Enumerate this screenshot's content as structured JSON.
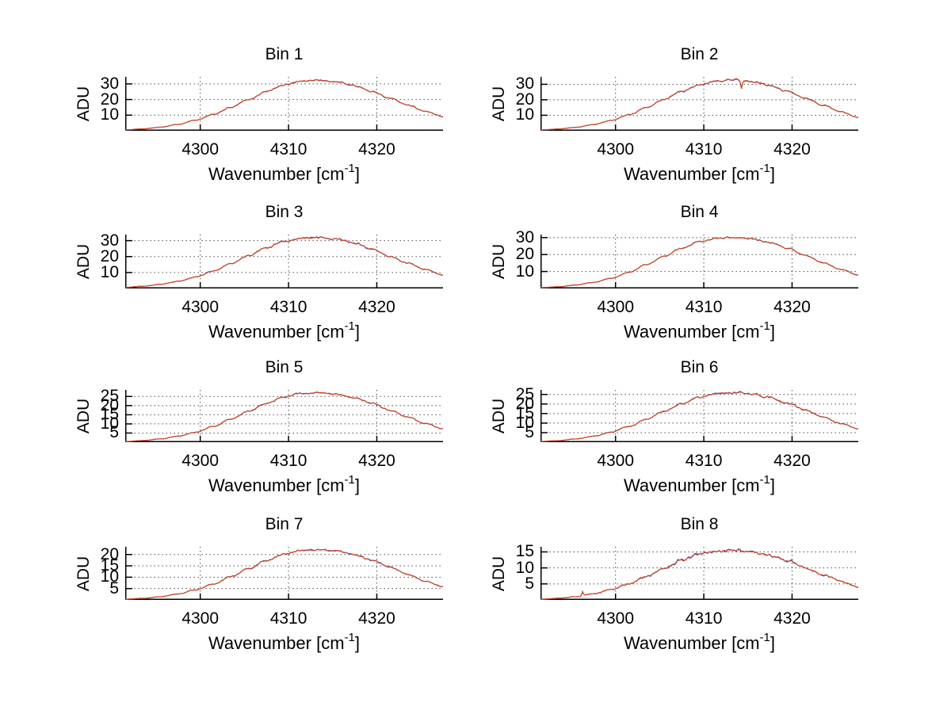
{
  "figure": {
    "bg": "#ffffff",
    "ylabel": "ADU",
    "xlabel_main": "Wavenumber [cm",
    "xlabel_sup": "-1",
    "xlabel_close": "]",
    "xlim": [
      4291.5,
      4327.5
    ],
    "xticks": [
      4300,
      4310,
      4320
    ],
    "grid": true,
    "colors": {
      "trace_main": "#cc4a24",
      "trace_under": "#3a35c4",
      "grid": "#404040",
      "axis": "#000000",
      "text": "#000000"
    }
  },
  "chart_data": [
    {
      "type": "line",
      "title": "Bin 1",
      "x": [
        4291.5,
        4293.5,
        4295.5,
        4297.5,
        4299.5,
        4301.5,
        4303.5,
        4305.5,
        4307.5,
        4309.5,
        4311.5,
        4313.5,
        4315.5,
        4317.5,
        4319.5,
        4321.5,
        4323.5,
        4325.5,
        4327.5
      ],
      "y": [
        0.6,
        1.2,
        2.3,
        4.1,
        6.8,
        10.5,
        15.0,
        20.1,
        25.1,
        29.3,
        31.9,
        32.4,
        31.3,
        28.7,
        25.1,
        20.9,
        16.6,
        12.5,
        9.0
      ],
      "yticks": [
        10,
        20,
        30
      ],
      "ylim": [
        0,
        34.5
      ],
      "noise": 0.5,
      "spikes": []
    },
    {
      "type": "line",
      "title": "Bin 2",
      "x": [
        4291.5,
        4293.5,
        4295.5,
        4297.5,
        4299.5,
        4301.5,
        4303.5,
        4305.5,
        4307.5,
        4309.5,
        4311.5,
        4313.5,
        4315.5,
        4317.5,
        4319.5,
        4321.5,
        4323.5,
        4325.5,
        4327.5
      ],
      "y": [
        0.5,
        1.1,
        2.2,
        4.0,
        6.6,
        10.3,
        15.0,
        20.3,
        25.5,
        29.8,
        32.3,
        33.0,
        31.8,
        29.2,
        25.4,
        21.0,
        16.5,
        12.3,
        8.7
      ],
      "yticks": [
        10,
        20,
        30
      ],
      "ylim": [
        0,
        34.8
      ],
      "noise": 0.55,
      "spikes": [
        {
          "x": 4314.3,
          "dy": -5.5
        }
      ]
    },
    {
      "type": "line",
      "title": "Bin 3",
      "x": [
        4291.5,
        4293.5,
        4295.5,
        4297.5,
        4299.5,
        4301.5,
        4303.5,
        4305.5,
        4307.5,
        4309.5,
        4311.5,
        4313.5,
        4315.5,
        4317.5,
        4319.5,
        4321.5,
        4323.5,
        4325.5,
        4327.5
      ],
      "y": [
        0.7,
        1.4,
        2.6,
        4.5,
        7.2,
        11.0,
        15.6,
        20.7,
        25.6,
        29.6,
        31.8,
        32.0,
        30.9,
        28.3,
        24.6,
        20.3,
        15.9,
        11.9,
        8.4
      ],
      "yticks": [
        10,
        20,
        30
      ],
      "ylim": [
        0,
        33.8
      ],
      "noise": 0.55,
      "spikes": []
    },
    {
      "type": "line",
      "title": "Bin 4",
      "x": [
        4291.5,
        4293.5,
        4295.5,
        4297.5,
        4299.5,
        4301.5,
        4303.5,
        4305.5,
        4307.5,
        4309.5,
        4311.5,
        4313.5,
        4315.5,
        4317.5,
        4319.5,
        4321.5,
        4323.5,
        4325.5,
        4327.5
      ],
      "y": [
        0.5,
        1.0,
        2.0,
        3.6,
        6.0,
        9.5,
        14.0,
        18.9,
        23.8,
        27.6,
        29.6,
        30.0,
        29.2,
        27.0,
        23.6,
        19.5,
        15.2,
        11.3,
        7.8
      ],
      "yticks": [
        10,
        20,
        30
      ],
      "ylim": [
        0,
        31.8
      ],
      "noise": 0.4,
      "spikes": []
    },
    {
      "type": "line",
      "title": "Bin 5",
      "x": [
        4291.5,
        4293.5,
        4295.5,
        4297.5,
        4299.5,
        4301.5,
        4303.5,
        4305.5,
        4307.5,
        4309.5,
        4311.5,
        4313.5,
        4315.5,
        4317.5,
        4319.5,
        4321.5,
        4323.5,
        4325.5,
        4327.5
      ],
      "y": [
        0.4,
        0.9,
        1.8,
        3.3,
        5.5,
        8.7,
        12.7,
        17.0,
        21.3,
        24.7,
        26.6,
        27.0,
        26.2,
        24.2,
        21.2,
        17.5,
        13.7,
        10.2,
        7.3
      ],
      "yticks": [
        5,
        10,
        15,
        20,
        25
      ],
      "ylim": [
        0,
        28.6
      ],
      "noise": 0.45,
      "spikes": []
    },
    {
      "type": "line",
      "title": "Bin 6",
      "x": [
        4291.5,
        4293.5,
        4295.5,
        4297.5,
        4299.5,
        4301.5,
        4303.5,
        4305.5,
        4307.5,
        4309.5,
        4311.5,
        4313.5,
        4315.5,
        4317.5,
        4319.5,
        4321.5,
        4323.5,
        4325.5,
        4327.5
      ],
      "y": [
        0.4,
        0.8,
        1.7,
        3.1,
        5.2,
        8.2,
        12.0,
        16.2,
        20.3,
        23.6,
        25.5,
        25.9,
        25.2,
        23.3,
        20.4,
        16.9,
        13.2,
        9.8,
        7.0
      ],
      "yticks": [
        5,
        10,
        15,
        20,
        25
      ],
      "ylim": [
        0,
        27.4
      ],
      "noise": 0.5,
      "spikes": []
    },
    {
      "type": "line",
      "title": "Bin 7",
      "x": [
        4291.5,
        4293.5,
        4295.5,
        4297.5,
        4299.5,
        4301.5,
        4303.5,
        4305.5,
        4307.5,
        4309.5,
        4311.5,
        4313.5,
        4315.5,
        4317.5,
        4319.5,
        4321.5,
        4323.5,
        4325.5,
        4327.5
      ],
      "y": [
        0.3,
        0.7,
        1.4,
        2.6,
        4.4,
        7.0,
        10.3,
        13.9,
        17.4,
        20.2,
        21.8,
        22.1,
        21.5,
        19.9,
        17.4,
        14.4,
        11.2,
        8.3,
        5.9
      ],
      "yticks": [
        5,
        10,
        15,
        20
      ],
      "ylim": [
        0,
        23.4
      ],
      "noise": 0.4,
      "spikes": []
    },
    {
      "type": "line",
      "title": "Bin 8",
      "x": [
        4291.5,
        4293.5,
        4295.5,
        4297.5,
        4299.5,
        4301.5,
        4303.5,
        4305.5,
        4307.5,
        4309.5,
        4311.5,
        4313.5,
        4315.5,
        4317.5,
        4319.5,
        4321.5,
        4323.5,
        4325.5,
        4327.5
      ],
      "y": [
        0.2,
        0.5,
        1.0,
        1.9,
        3.2,
        5.0,
        7.3,
        9.9,
        12.4,
        14.4,
        15.4,
        15.6,
        15.1,
        14.0,
        12.2,
        10.1,
        7.9,
        5.8,
        4.1
      ],
      "yticks": [
        5,
        10,
        15
      ],
      "ylim": [
        0,
        16.6
      ],
      "noise": 0.45,
      "spikes": [
        {
          "x": 4296.3,
          "dy": 1.3
        }
      ]
    }
  ]
}
